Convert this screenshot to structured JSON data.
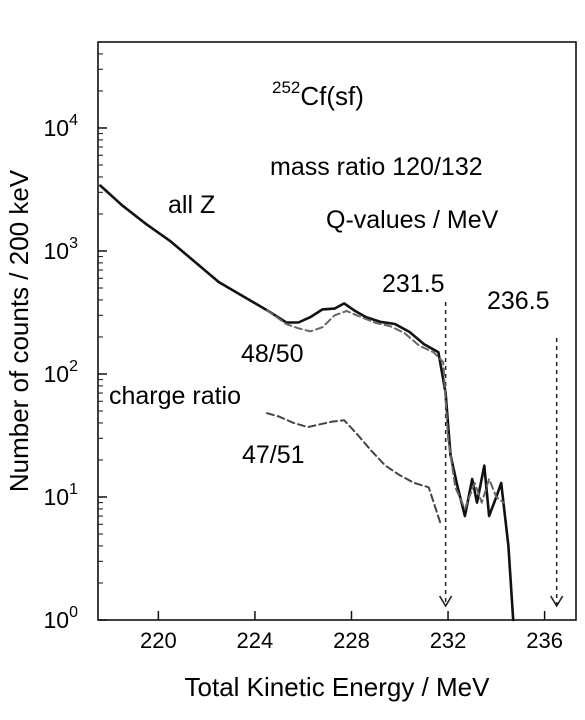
{
  "chart_data": {
    "type": "line",
    "title": "252Cf(sf)",
    "title_parts": {
      "mass_number": "252",
      "nuclide": "Cf(sf)"
    },
    "subtitle": "mass ratio 120/132",
    "xlabel": "Total Kinetic Energy / MeV",
    "ylabel": "Number of counts / 200 keV",
    "xlim": [
      217.5,
      237.3
    ],
    "ylim": [
      1,
      50000
    ],
    "yscale": "log",
    "xticks": [
      220,
      224,
      228,
      232,
      236
    ],
    "yticks": [
      {
        "value": 1,
        "base": "10",
        "exp": "0"
      },
      {
        "value": 10,
        "base": "10",
        "exp": "1"
      },
      {
        "value": 100,
        "base": "10",
        "exp": "2"
      },
      {
        "value": 1000,
        "base": "10",
        "exp": "3"
      },
      {
        "value": 10000,
        "base": "10",
        "exp": "4"
      }
    ],
    "grid": false,
    "legend": "none",
    "series": [
      {
        "name": "all Z",
        "style": "solid",
        "color": "#111111",
        "x": [
          217.6,
          218.5,
          219.5,
          220.5,
          221.5,
          222.5,
          223.5,
          224.5,
          225.3,
          225.8,
          226.3,
          226.8,
          227.3,
          227.7,
          228.1,
          228.6,
          229.2,
          229.8,
          230.4,
          231.0,
          231.6,
          231.9,
          232.1,
          232.4,
          232.7,
          233.0,
          233.2,
          233.5,
          233.7,
          234.0,
          234.2,
          234.5,
          234.7
        ],
        "y": [
          3400,
          2350,
          1650,
          1200,
          820,
          560,
          430,
          330,
          262,
          262,
          290,
          335,
          340,
          375,
          330,
          290,
          265,
          255,
          220,
          175,
          150,
          70,
          22,
          12,
          7,
          14,
          9,
          18,
          7,
          10,
          13,
          4,
          1
        ]
      },
      {
        "name": "48/50",
        "style": "dashed",
        "color": "#666666",
        "x": [
          224.5,
          225.3,
          225.8,
          226.3,
          226.8,
          227.3,
          227.8,
          228.4,
          229.0,
          229.6,
          230.2,
          230.8,
          231.4,
          231.8,
          232.0,
          232.3,
          232.7,
          233.1,
          233.4,
          233.7,
          234.0,
          234.3
        ],
        "y": [
          330,
          255,
          235,
          222,
          240,
          300,
          325,
          290,
          260,
          245,
          215,
          170,
          150,
          125,
          30,
          12,
          8,
          13,
          9,
          14,
          10,
          9
        ]
      },
      {
        "name": "47/51",
        "style": "dashed",
        "color": "#444444",
        "x": [
          224.5,
          225.0,
          225.6,
          226.2,
          226.7,
          227.2,
          227.7,
          228.2,
          228.8,
          229.4,
          230.0,
          230.6,
          231.2,
          231.7
        ],
        "y": [
          48,
          45,
          40,
          37,
          39,
          41,
          42,
          33,
          24,
          18,
          15,
          13,
          12,
          6
        ]
      }
    ],
    "annotations": {
      "all_z": "all Z",
      "label_48_50": "48/50",
      "charge_ratio": "charge ratio",
      "label_47_51": "47/51",
      "q_values": "Q-values / MeV",
      "q1": {
        "label": "231.5",
        "x": 231.9
      },
      "q2": {
        "label": "236.5",
        "x": 236.5
      }
    }
  }
}
